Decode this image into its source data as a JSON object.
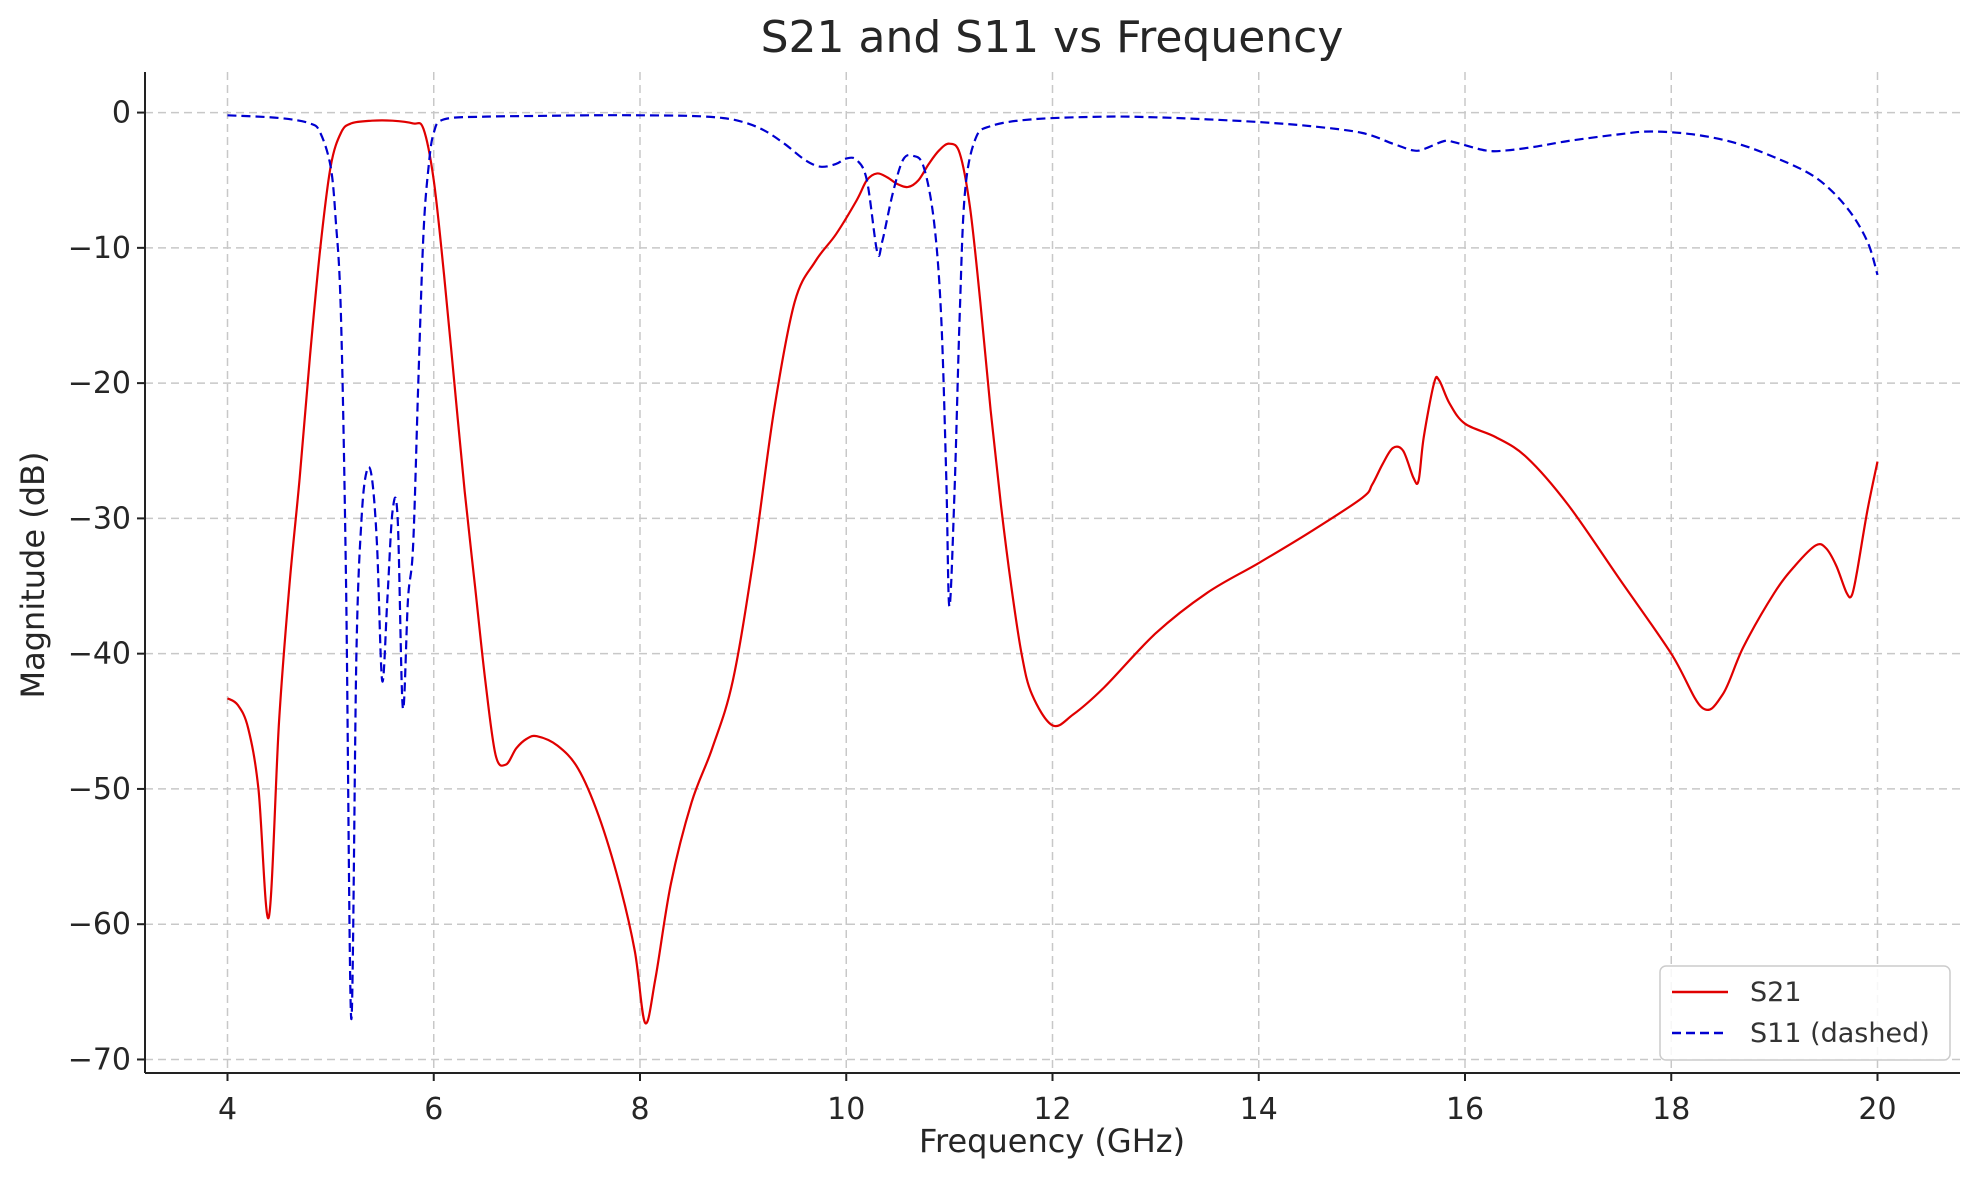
{
  "chart_data": {
    "type": "line",
    "title": "S21 and S11 vs Frequency",
    "xlabel": "Frequency (GHz)",
    "ylabel": "Magnitude (dB)",
    "xlim": [
      3.2,
      20.8
    ],
    "ylim": [
      -71,
      3
    ],
    "x_ticks": [
      4,
      6,
      8,
      10,
      12,
      14,
      16,
      18,
      20
    ],
    "y_ticks": [
      0,
      -10,
      -20,
      -30,
      -40,
      -50,
      -60,
      -70
    ],
    "x_tick_labels": [
      "4",
      "6",
      "8",
      "10",
      "12",
      "14",
      "16",
      "18",
      "20"
    ],
    "y_tick_labels": [
      "0",
      "−10",
      "−20",
      "−30",
      "−40",
      "−50",
      "−60",
      "−70"
    ],
    "grid": true,
    "legend_position": "bottom-right",
    "series": [
      {
        "name": "S21",
        "color": "#e00000",
        "style": "solid",
        "points": [
          [
            4.0,
            -43.3
          ],
          [
            4.1,
            -43.8
          ],
          [
            4.2,
            -45.5
          ],
          [
            4.3,
            -50.0
          ],
          [
            4.4,
            -59.5
          ],
          [
            4.5,
            -45.0
          ],
          [
            4.6,
            -35.0
          ],
          [
            4.7,
            -27.0
          ],
          [
            4.8,
            -18.0
          ],
          [
            4.9,
            -10.0
          ],
          [
            5.0,
            -4.0
          ],
          [
            5.1,
            -1.5
          ],
          [
            5.2,
            -0.8
          ],
          [
            5.4,
            -0.6
          ],
          [
            5.6,
            -0.6
          ],
          [
            5.8,
            -0.8
          ],
          [
            5.9,
            -1.2
          ],
          [
            6.0,
            -5.0
          ],
          [
            6.1,
            -12.0
          ],
          [
            6.2,
            -20.0
          ],
          [
            6.3,
            -28.0
          ],
          [
            6.4,
            -35.0
          ],
          [
            6.5,
            -42.0
          ],
          [
            6.6,
            -47.5
          ],
          [
            6.7,
            -48.2
          ],
          [
            6.8,
            -47.0
          ],
          [
            6.9,
            -46.3
          ],
          [
            7.0,
            -46.1
          ],
          [
            7.2,
            -46.8
          ],
          [
            7.4,
            -48.5
          ],
          [
            7.6,
            -52.0
          ],
          [
            7.8,
            -57.0
          ],
          [
            7.95,
            -62.0
          ],
          [
            8.05,
            -67.3
          ],
          [
            8.15,
            -64.0
          ],
          [
            8.3,
            -57.0
          ],
          [
            8.5,
            -51.0
          ],
          [
            8.7,
            -47.0
          ],
          [
            8.9,
            -42.0
          ],
          [
            9.1,
            -33.0
          ],
          [
            9.3,
            -22.0
          ],
          [
            9.5,
            -14.0
          ],
          [
            9.7,
            -11.0
          ],
          [
            9.9,
            -9.0
          ],
          [
            10.1,
            -6.5
          ],
          [
            10.2,
            -5.0
          ],
          [
            10.3,
            -4.5
          ],
          [
            10.4,
            -4.8
          ],
          [
            10.5,
            -5.3
          ],
          [
            10.6,
            -5.5
          ],
          [
            10.7,
            -5.0
          ],
          [
            10.8,
            -3.8
          ],
          [
            10.9,
            -2.8
          ],
          [
            11.0,
            -2.3
          ],
          [
            11.1,
            -3.0
          ],
          [
            11.2,
            -7.0
          ],
          [
            11.3,
            -14.0
          ],
          [
            11.4,
            -22.0
          ],
          [
            11.5,
            -29.0
          ],
          [
            11.6,
            -35.0
          ],
          [
            11.7,
            -40.0
          ],
          [
            11.8,
            -43.0
          ],
          [
            12.0,
            -45.3
          ],
          [
            12.2,
            -44.5
          ],
          [
            12.5,
            -42.5
          ],
          [
            13.0,
            -38.5
          ],
          [
            13.5,
            -35.5
          ],
          [
            14.0,
            -33.3
          ],
          [
            14.5,
            -31.0
          ],
          [
            15.0,
            -28.5
          ],
          [
            15.1,
            -27.5
          ],
          [
            15.2,
            -26.0
          ],
          [
            15.3,
            -24.8
          ],
          [
            15.4,
            -25.0
          ],
          [
            15.5,
            -27.0
          ],
          [
            15.55,
            -27.2
          ],
          [
            15.6,
            -24.0
          ],
          [
            15.7,
            -20.0
          ],
          [
            15.75,
            -19.8
          ],
          [
            15.85,
            -21.5
          ],
          [
            16.0,
            -23.0
          ],
          [
            16.3,
            -24.0
          ],
          [
            16.6,
            -25.5
          ],
          [
            17.0,
            -29.0
          ],
          [
            17.5,
            -34.5
          ],
          [
            18.0,
            -40.0
          ],
          [
            18.3,
            -44.0
          ],
          [
            18.5,
            -43.0
          ],
          [
            18.7,
            -39.5
          ],
          [
            19.0,
            -35.5
          ],
          [
            19.2,
            -33.5
          ],
          [
            19.4,
            -32.0
          ],
          [
            19.5,
            -32.2
          ],
          [
            19.6,
            -33.5
          ],
          [
            19.7,
            -35.5
          ],
          [
            19.75,
            -35.7
          ],
          [
            19.8,
            -34.0
          ],
          [
            19.9,
            -29.5
          ],
          [
            20.0,
            -25.8
          ]
        ]
      },
      {
        "name": "S11 (dashed)",
        "color": "#0000d0",
        "style": "dashed",
        "points": [
          [
            4.0,
            -0.2
          ],
          [
            4.5,
            -0.4
          ],
          [
            4.8,
            -0.8
          ],
          [
            4.9,
            -1.5
          ],
          [
            5.0,
            -4.0
          ],
          [
            5.05,
            -8.0
          ],
          [
            5.1,
            -15.0
          ],
          [
            5.15,
            -35.0
          ],
          [
            5.2,
            -67.0
          ],
          [
            5.25,
            -40.0
          ],
          [
            5.3,
            -30.0
          ],
          [
            5.35,
            -26.5
          ],
          [
            5.4,
            -27.0
          ],
          [
            5.45,
            -32.0
          ],
          [
            5.5,
            -42.0
          ],
          [
            5.55,
            -36.0
          ],
          [
            5.6,
            -29.5
          ],
          [
            5.65,
            -30.0
          ],
          [
            5.7,
            -44.0
          ],
          [
            5.75,
            -36.0
          ],
          [
            5.8,
            -32.0
          ],
          [
            5.85,
            -20.0
          ],
          [
            5.9,
            -9.0
          ],
          [
            5.95,
            -4.0
          ],
          [
            6.0,
            -1.5
          ],
          [
            6.1,
            -0.5
          ],
          [
            6.5,
            -0.3
          ],
          [
            7.0,
            -0.25
          ],
          [
            7.5,
            -0.2
          ],
          [
            8.0,
            -0.2
          ],
          [
            8.5,
            -0.25
          ],
          [
            8.8,
            -0.4
          ],
          [
            9.0,
            -0.7
          ],
          [
            9.2,
            -1.3
          ],
          [
            9.4,
            -2.3
          ],
          [
            9.6,
            -3.5
          ],
          [
            9.75,
            -4.0
          ],
          [
            9.9,
            -3.8
          ],
          [
            10.0,
            -3.4
          ],
          [
            10.1,
            -3.5
          ],
          [
            10.2,
            -5.0
          ],
          [
            10.3,
            -10.3
          ],
          [
            10.35,
            -9.5
          ],
          [
            10.45,
            -6.0
          ],
          [
            10.55,
            -3.5
          ],
          [
            10.65,
            -3.2
          ],
          [
            10.75,
            -4.0
          ],
          [
            10.85,
            -8.0
          ],
          [
            10.92,
            -15.0
          ],
          [
            10.97,
            -27.0
          ],
          [
            11.0,
            -36.5
          ],
          [
            11.05,
            -28.0
          ],
          [
            11.1,
            -15.0
          ],
          [
            11.15,
            -6.0
          ],
          [
            11.25,
            -2.0
          ],
          [
            11.4,
            -1.0
          ],
          [
            11.8,
            -0.5
          ],
          [
            12.5,
            -0.3
          ],
          [
            13.0,
            -0.35
          ],
          [
            13.5,
            -0.5
          ],
          [
            14.0,
            -0.7
          ],
          [
            14.5,
            -1.0
          ],
          [
            15.0,
            -1.5
          ],
          [
            15.3,
            -2.3
          ],
          [
            15.5,
            -2.8
          ],
          [
            15.6,
            -2.7
          ],
          [
            15.8,
            -2.1
          ],
          [
            15.9,
            -2.2
          ],
          [
            16.2,
            -2.8
          ],
          [
            16.4,
            -2.8
          ],
          [
            16.7,
            -2.5
          ],
          [
            17.0,
            -2.1
          ],
          [
            17.5,
            -1.6
          ],
          [
            17.8,
            -1.4
          ],
          [
            18.2,
            -1.6
          ],
          [
            18.6,
            -2.2
          ],
          [
            19.0,
            -3.3
          ],
          [
            19.4,
            -4.8
          ],
          [
            19.7,
            -7.0
          ],
          [
            19.9,
            -9.5
          ],
          [
            20.0,
            -12.0
          ]
        ]
      }
    ]
  }
}
